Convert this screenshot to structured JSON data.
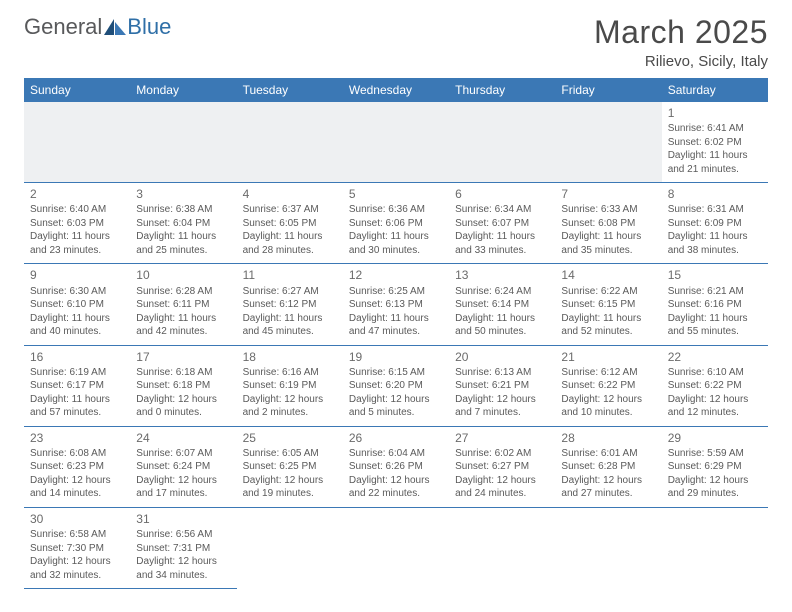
{
  "brand": {
    "part1": "General",
    "part2": "Blue"
  },
  "title": "March 2025",
  "location": "Rilievo, Sicily, Italy",
  "colors": {
    "header_bg": "#3b78b5",
    "header_text": "#ffffff",
    "row_border": "#3b78b5",
    "empty_bg": "#eef0f2",
    "text": "#5a5a5a",
    "title_text": "#4a4a4a"
  },
  "weekdays": [
    "Sunday",
    "Monday",
    "Tuesday",
    "Wednesday",
    "Thursday",
    "Friday",
    "Saturday"
  ],
  "weeks": [
    [
      null,
      null,
      null,
      null,
      null,
      null,
      {
        "n": "1",
        "sr": "Sunrise: 6:41 AM",
        "ss": "Sunset: 6:02 PM",
        "d1": "Daylight: 11 hours",
        "d2": "and 21 minutes."
      }
    ],
    [
      {
        "n": "2",
        "sr": "Sunrise: 6:40 AM",
        "ss": "Sunset: 6:03 PM",
        "d1": "Daylight: 11 hours",
        "d2": "and 23 minutes."
      },
      {
        "n": "3",
        "sr": "Sunrise: 6:38 AM",
        "ss": "Sunset: 6:04 PM",
        "d1": "Daylight: 11 hours",
        "d2": "and 25 minutes."
      },
      {
        "n": "4",
        "sr": "Sunrise: 6:37 AM",
        "ss": "Sunset: 6:05 PM",
        "d1": "Daylight: 11 hours",
        "d2": "and 28 minutes."
      },
      {
        "n": "5",
        "sr": "Sunrise: 6:36 AM",
        "ss": "Sunset: 6:06 PM",
        "d1": "Daylight: 11 hours",
        "d2": "and 30 minutes."
      },
      {
        "n": "6",
        "sr": "Sunrise: 6:34 AM",
        "ss": "Sunset: 6:07 PM",
        "d1": "Daylight: 11 hours",
        "d2": "and 33 minutes."
      },
      {
        "n": "7",
        "sr": "Sunrise: 6:33 AM",
        "ss": "Sunset: 6:08 PM",
        "d1": "Daylight: 11 hours",
        "d2": "and 35 minutes."
      },
      {
        "n": "8",
        "sr": "Sunrise: 6:31 AM",
        "ss": "Sunset: 6:09 PM",
        "d1": "Daylight: 11 hours",
        "d2": "and 38 minutes."
      }
    ],
    [
      {
        "n": "9",
        "sr": "Sunrise: 6:30 AM",
        "ss": "Sunset: 6:10 PM",
        "d1": "Daylight: 11 hours",
        "d2": "and 40 minutes."
      },
      {
        "n": "10",
        "sr": "Sunrise: 6:28 AM",
        "ss": "Sunset: 6:11 PM",
        "d1": "Daylight: 11 hours",
        "d2": "and 42 minutes."
      },
      {
        "n": "11",
        "sr": "Sunrise: 6:27 AM",
        "ss": "Sunset: 6:12 PM",
        "d1": "Daylight: 11 hours",
        "d2": "and 45 minutes."
      },
      {
        "n": "12",
        "sr": "Sunrise: 6:25 AM",
        "ss": "Sunset: 6:13 PM",
        "d1": "Daylight: 11 hours",
        "d2": "and 47 minutes."
      },
      {
        "n": "13",
        "sr": "Sunrise: 6:24 AM",
        "ss": "Sunset: 6:14 PM",
        "d1": "Daylight: 11 hours",
        "d2": "and 50 minutes."
      },
      {
        "n": "14",
        "sr": "Sunrise: 6:22 AM",
        "ss": "Sunset: 6:15 PM",
        "d1": "Daylight: 11 hours",
        "d2": "and 52 minutes."
      },
      {
        "n": "15",
        "sr": "Sunrise: 6:21 AM",
        "ss": "Sunset: 6:16 PM",
        "d1": "Daylight: 11 hours",
        "d2": "and 55 minutes."
      }
    ],
    [
      {
        "n": "16",
        "sr": "Sunrise: 6:19 AM",
        "ss": "Sunset: 6:17 PM",
        "d1": "Daylight: 11 hours",
        "d2": "and 57 minutes."
      },
      {
        "n": "17",
        "sr": "Sunrise: 6:18 AM",
        "ss": "Sunset: 6:18 PM",
        "d1": "Daylight: 12 hours",
        "d2": "and 0 minutes."
      },
      {
        "n": "18",
        "sr": "Sunrise: 6:16 AM",
        "ss": "Sunset: 6:19 PM",
        "d1": "Daylight: 12 hours",
        "d2": "and 2 minutes."
      },
      {
        "n": "19",
        "sr": "Sunrise: 6:15 AM",
        "ss": "Sunset: 6:20 PM",
        "d1": "Daylight: 12 hours",
        "d2": "and 5 minutes."
      },
      {
        "n": "20",
        "sr": "Sunrise: 6:13 AM",
        "ss": "Sunset: 6:21 PM",
        "d1": "Daylight: 12 hours",
        "d2": "and 7 minutes."
      },
      {
        "n": "21",
        "sr": "Sunrise: 6:12 AM",
        "ss": "Sunset: 6:22 PM",
        "d1": "Daylight: 12 hours",
        "d2": "and 10 minutes."
      },
      {
        "n": "22",
        "sr": "Sunrise: 6:10 AM",
        "ss": "Sunset: 6:22 PM",
        "d1": "Daylight: 12 hours",
        "d2": "and 12 minutes."
      }
    ],
    [
      {
        "n": "23",
        "sr": "Sunrise: 6:08 AM",
        "ss": "Sunset: 6:23 PM",
        "d1": "Daylight: 12 hours",
        "d2": "and 14 minutes."
      },
      {
        "n": "24",
        "sr": "Sunrise: 6:07 AM",
        "ss": "Sunset: 6:24 PM",
        "d1": "Daylight: 12 hours",
        "d2": "and 17 minutes."
      },
      {
        "n": "25",
        "sr": "Sunrise: 6:05 AM",
        "ss": "Sunset: 6:25 PM",
        "d1": "Daylight: 12 hours",
        "d2": "and 19 minutes."
      },
      {
        "n": "26",
        "sr": "Sunrise: 6:04 AM",
        "ss": "Sunset: 6:26 PM",
        "d1": "Daylight: 12 hours",
        "d2": "and 22 minutes."
      },
      {
        "n": "27",
        "sr": "Sunrise: 6:02 AM",
        "ss": "Sunset: 6:27 PM",
        "d1": "Daylight: 12 hours",
        "d2": "and 24 minutes."
      },
      {
        "n": "28",
        "sr": "Sunrise: 6:01 AM",
        "ss": "Sunset: 6:28 PM",
        "d1": "Daylight: 12 hours",
        "d2": "and 27 minutes."
      },
      {
        "n": "29",
        "sr": "Sunrise: 5:59 AM",
        "ss": "Sunset: 6:29 PM",
        "d1": "Daylight: 12 hours",
        "d2": "and 29 minutes."
      }
    ],
    [
      {
        "n": "30",
        "sr": "Sunrise: 6:58 AM",
        "ss": "Sunset: 7:30 PM",
        "d1": "Daylight: 12 hours",
        "d2": "and 32 minutes."
      },
      {
        "n": "31",
        "sr": "Sunrise: 6:56 AM",
        "ss": "Sunset: 7:31 PM",
        "d1": "Daylight: 12 hours",
        "d2": "and 34 minutes."
      },
      null,
      null,
      null,
      null,
      null
    ]
  ]
}
